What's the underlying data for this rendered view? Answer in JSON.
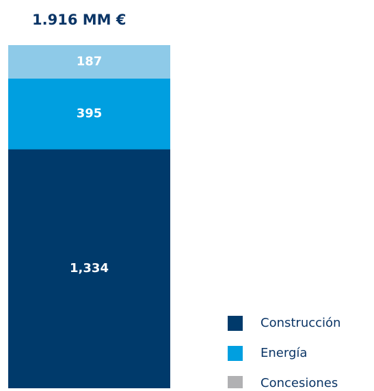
{
  "chart_data": {
    "type": "stacked_bar",
    "title": "1.916 MM €",
    "series": [
      {
        "name": "Construcción",
        "color": "#003a6b",
        "legend_color": "#003a6b",
        "values": [
          1334
        ],
        "value_labels": [
          "1,334"
        ]
      },
      {
        "name": "Energía",
        "color": "#009fe0",
        "legend_color": "#009fe0",
        "values": [
          395
        ],
        "value_labels": [
          "395"
        ]
      },
      {
        "name": "Concesiones",
        "color": "#8ecae8",
        "legend_color": "#b1b1b3",
        "values": [
          187
        ],
        "value_labels": [
          "187"
        ]
      }
    ]
  }
}
